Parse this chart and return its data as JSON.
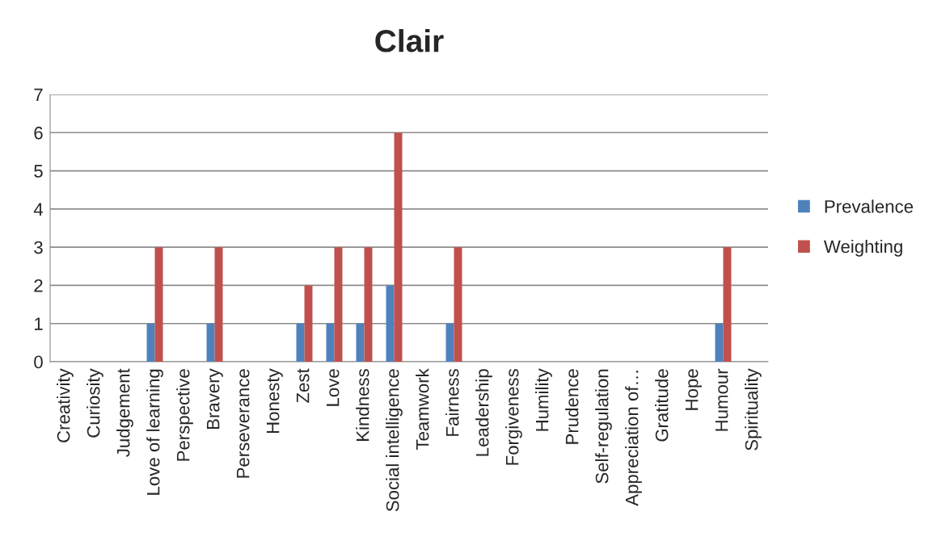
{
  "chart_data": {
    "type": "bar",
    "title": "Clair",
    "categories": [
      "Creativity",
      "Curiosity",
      "Judgement",
      "Love of learning",
      "Perspective",
      "Bravery",
      "Perseverance",
      "Honesty",
      "Zest",
      "Love",
      "Kindness",
      "Social intelligence",
      "Teamwork",
      "Fairness",
      "Leadership",
      "Forgiveness",
      "Humility",
      "Prudence",
      "Self-regulation",
      "Appreciation of…",
      "Gratitude",
      "Hope",
      "Humour",
      "Spirituality"
    ],
    "series": [
      {
        "name": "Prevalence",
        "color": "#4f81bd",
        "values": [
          0,
          0,
          0,
          1,
          0,
          1,
          0,
          0,
          1,
          1,
          1,
          2,
          0,
          1,
          0,
          0,
          0,
          0,
          0,
          0,
          0,
          0,
          1,
          0
        ]
      },
      {
        "name": "Weighting",
        "color": "#c0504d",
        "values": [
          0,
          0,
          0,
          3,
          0,
          3,
          0,
          0,
          2,
          3,
          3,
          6,
          0,
          3,
          0,
          0,
          0,
          0,
          0,
          0,
          0,
          0,
          3,
          0
        ]
      }
    ],
    "ylim": [
      0,
      7
    ],
    "yticks": [
      0,
      1,
      2,
      3,
      4,
      5,
      6,
      7
    ],
    "grid": "y",
    "legend": "right"
  }
}
